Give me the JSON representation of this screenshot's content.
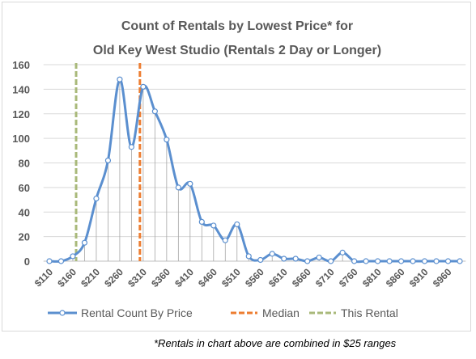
{
  "chart_data": {
    "type": "line",
    "title": [
      "Count of Rentals by Lowest Price* for",
      "Old Key West Studio (Rentals 2 Day or Longer)"
    ],
    "xlabel": "",
    "ylabel": "",
    "ylim": [
      0,
      160
    ],
    "y_ticks": [
      0,
      20,
      40,
      60,
      80,
      100,
      120,
      140,
      160
    ],
    "x_tick_labels": [
      "$110",
      "$160",
      "$210",
      "$260",
      "$310",
      "$360",
      "$410",
      "$460",
      "$510",
      "$560",
      "$610",
      "$660",
      "$710",
      "$760",
      "$810",
      "$860",
      "$910",
      "$960"
    ],
    "grid": "horizontal",
    "legend_position": "bottom",
    "series": [
      {
        "name": "Rental Count By Price",
        "color": "#5b8fcf",
        "x": [
          110,
          135,
          160,
          185,
          210,
          235,
          260,
          285,
          310,
          335,
          360,
          385,
          410,
          435,
          460,
          485,
          510,
          535,
          560,
          585,
          610,
          635,
          660,
          685,
          710,
          735,
          760,
          785,
          810,
          835,
          860,
          885,
          910,
          935,
          960,
          985
        ],
        "y": [
          0,
          0,
          4,
          15,
          51,
          82,
          148,
          93,
          142,
          122,
          99,
          60,
          63,
          32,
          29,
          17,
          30,
          4,
          1,
          6,
          2,
          2,
          0,
          3,
          0,
          7,
          0,
          0,
          0,
          0,
          0,
          0,
          0,
          0,
          0,
          0
        ]
      }
    ],
    "reference_lines": [
      {
        "name": "Median",
        "x": 303,
        "color": "#ed7d31"
      },
      {
        "name": "This Rental",
        "x": 167,
        "color": "#a9b97a"
      }
    ]
  },
  "footnote": "*Rentals in chart above are combined in $25 ranges"
}
